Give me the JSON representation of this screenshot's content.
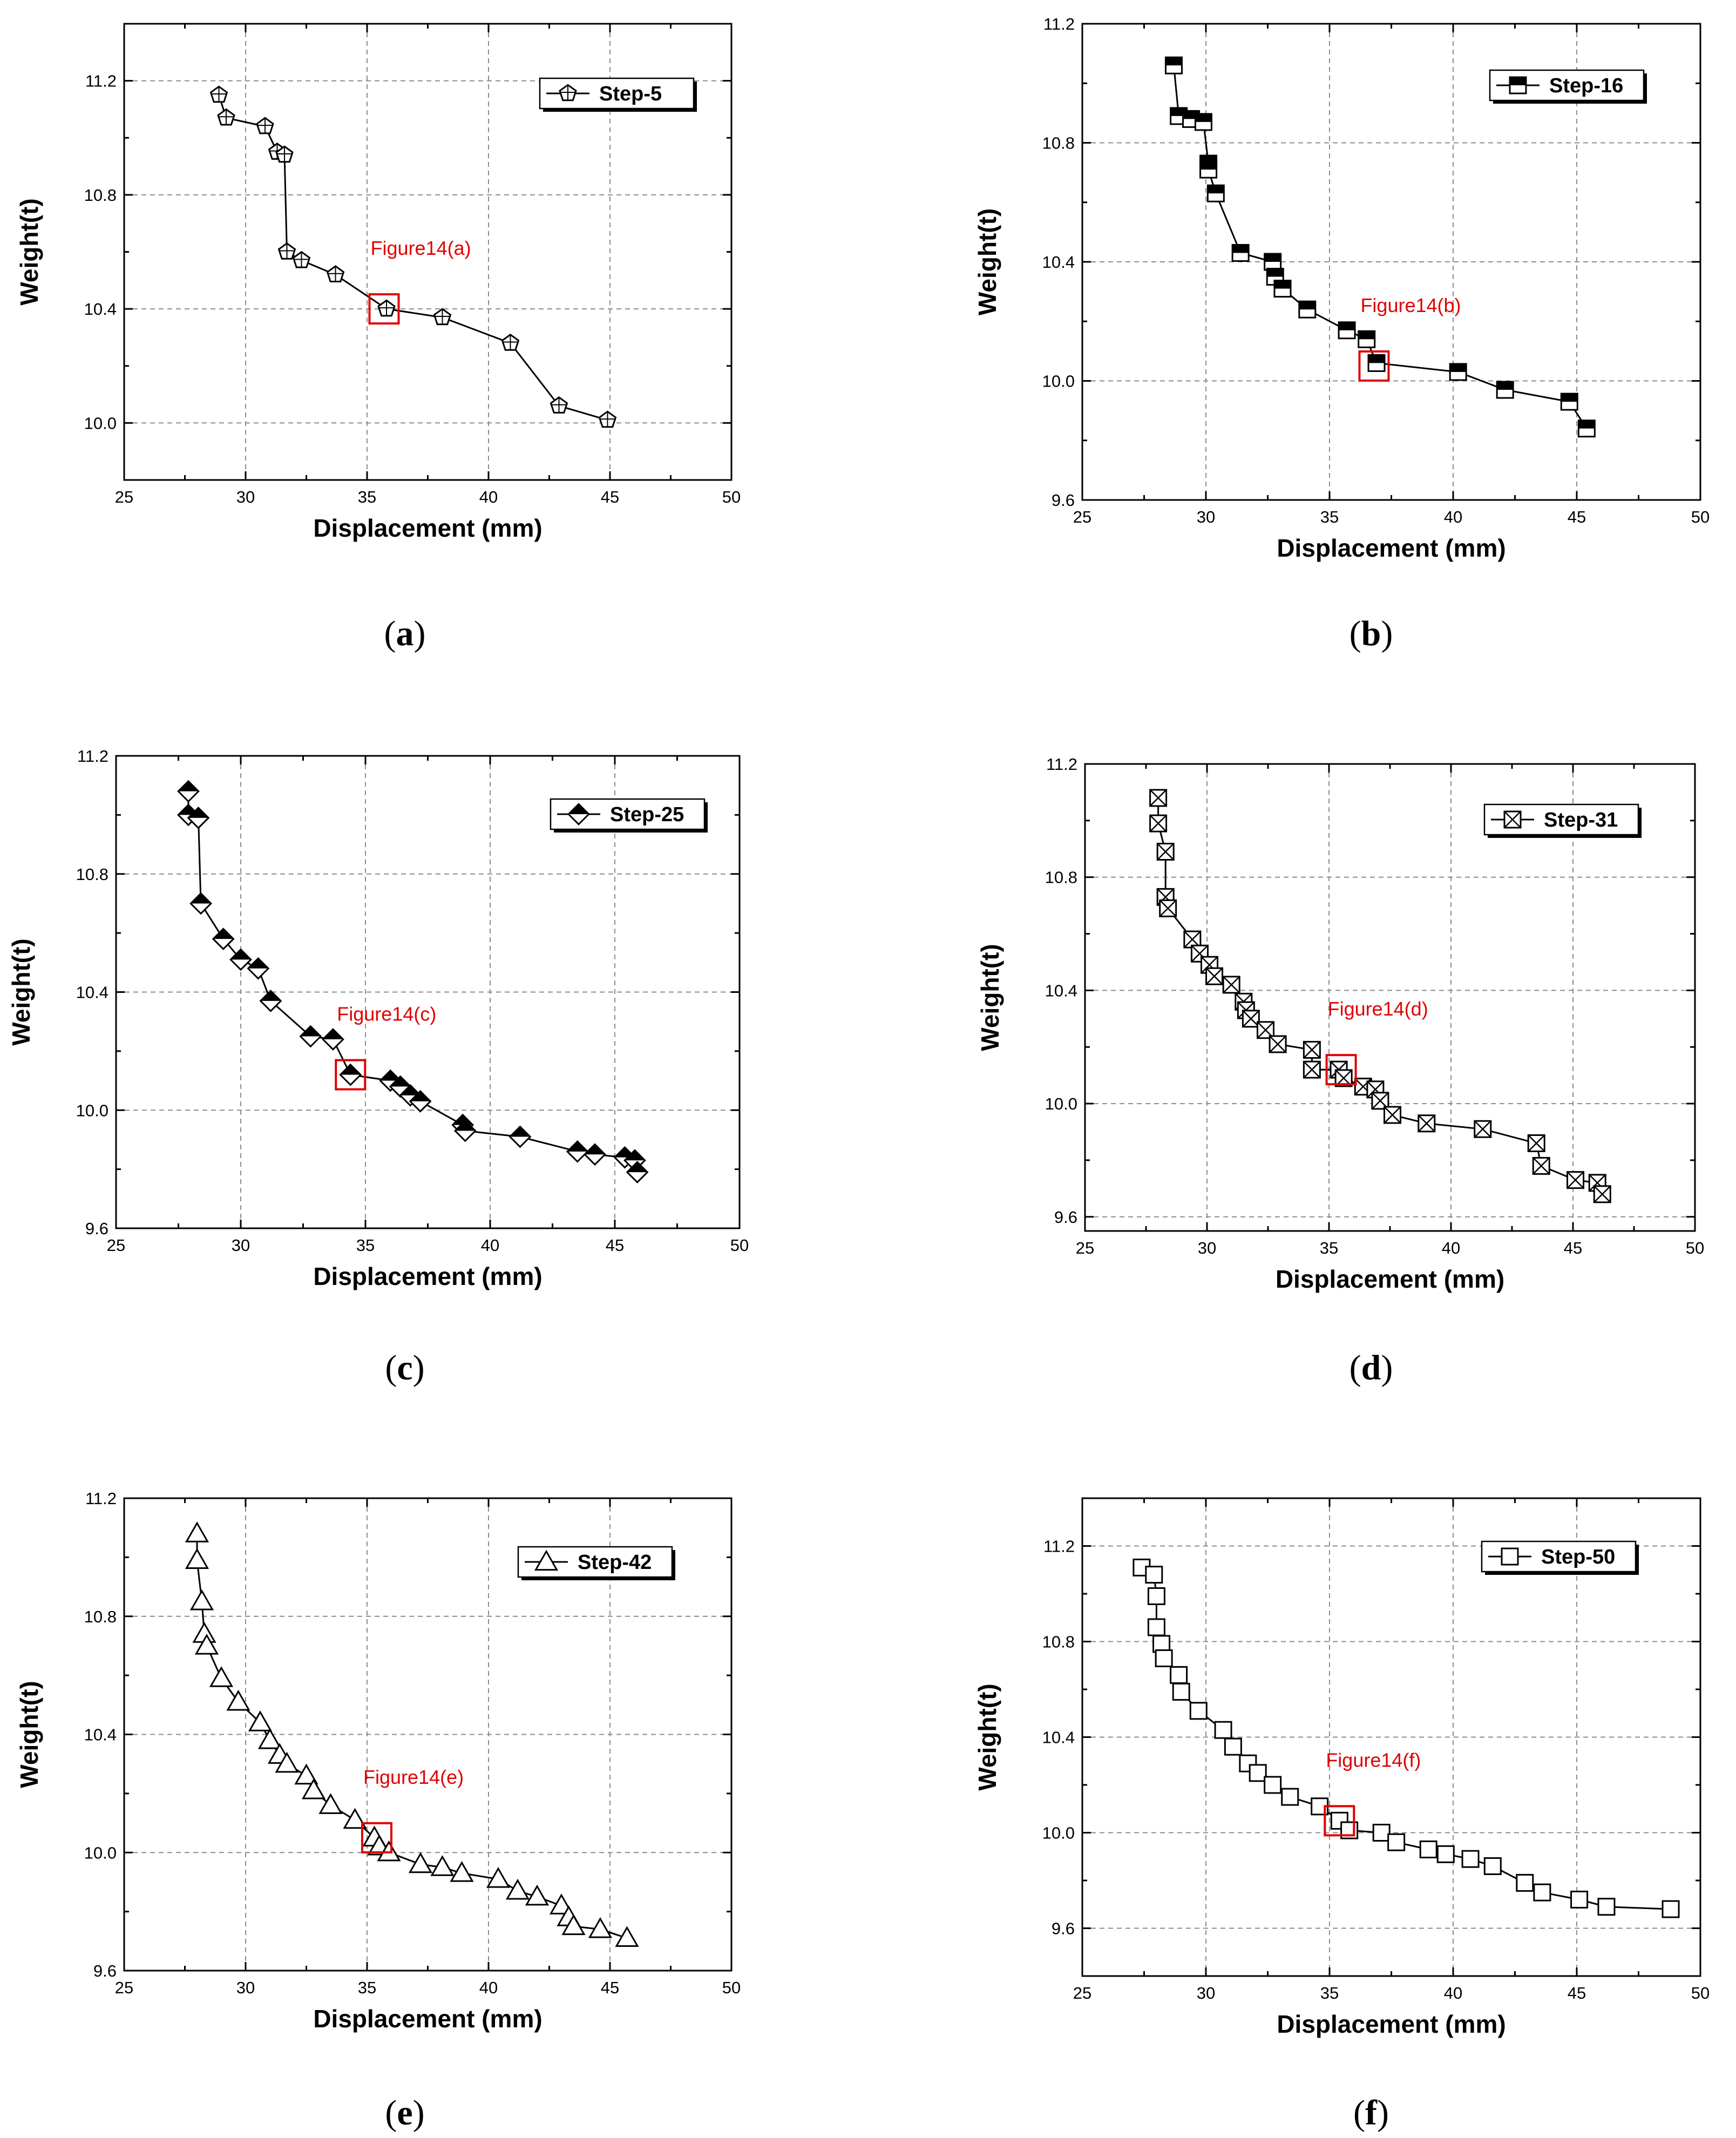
{
  "chart_data": [
    {
      "type": "line",
      "sub_label": "a",
      "series_name": "Step-5",
      "marker": "pentagon",
      "annotation": {
        "text": "Figure14(a)",
        "x": 35.7,
        "y": 10.4
      },
      "xlabel": "Displacement (mm)",
      "ylabel": "Weight(t)",
      "xlim": [
        25,
        50
      ],
      "ylim": [
        9.8,
        11.4
      ],
      "xticks": [
        25,
        30,
        35,
        40,
        45,
        50
      ],
      "yticks": [
        10.0,
        10.4,
        10.8,
        11.2
      ],
      "grid": true,
      "points": [
        [
          28.9,
          11.15
        ],
        [
          29.2,
          11.07
        ],
        [
          30.8,
          11.04
        ],
        [
          31.3,
          10.95
        ],
        [
          31.6,
          10.94
        ],
        [
          31.7,
          10.6
        ],
        [
          32.3,
          10.57
        ],
        [
          33.7,
          10.52
        ],
        [
          35.8,
          10.4
        ],
        [
          38.1,
          10.37
        ],
        [
          40.9,
          10.28
        ],
        [
          42.9,
          10.06
        ],
        [
          44.9,
          10.01
        ]
      ]
    },
    {
      "type": "line",
      "sub_label": "b",
      "series_name": "Step-16",
      "marker": "square-half",
      "annotation": {
        "text": "Figure14(b)",
        "x": 36.8,
        "y": 10.05
      },
      "xlabel": "Displacement (mm)",
      "ylabel": "Weight(t)",
      "xlim": [
        25,
        50
      ],
      "ylim": [
        9.6,
        11.2
      ],
      "xticks": [
        25,
        30,
        35,
        40,
        45,
        50
      ],
      "yticks": [
        9.6,
        10.0,
        10.4,
        10.8,
        11.2
      ],
      "grid": true,
      "points": [
        [
          28.7,
          11.06
        ],
        [
          28.9,
          10.89
        ],
        [
          29.4,
          10.88
        ],
        [
          29.9,
          10.87
        ],
        [
          30.1,
          10.73
        ],
        [
          30.1,
          10.71
        ],
        [
          30.4,
          10.63
        ],
        [
          31.4,
          10.43
        ],
        [
          32.7,
          10.4
        ],
        [
          32.8,
          10.35
        ],
        [
          33.1,
          10.31
        ],
        [
          34.1,
          10.24
        ],
        [
          35.7,
          10.17
        ],
        [
          36.5,
          10.14
        ],
        [
          36.9,
          10.06
        ],
        [
          40.2,
          10.03
        ],
        [
          42.1,
          9.97
        ],
        [
          44.7,
          9.93
        ],
        [
          45.4,
          9.84
        ]
      ]
    },
    {
      "type": "line",
      "sub_label": "c",
      "series_name": "Step-25",
      "marker": "diamond-half",
      "annotation": {
        "text": "Figure14(c)",
        "x": 34.4,
        "y": 10.12
      },
      "xlabel": "Displacement (mm)",
      "ylabel": "Weight(t)",
      "xlim": [
        25,
        50
      ],
      "ylim": [
        9.6,
        11.2
      ],
      "xticks": [
        25,
        30,
        35,
        40,
        45,
        50
      ],
      "yticks": [
        9.6,
        10.0,
        10.4,
        10.8,
        11.2
      ],
      "grid": true,
      "points": [
        [
          27.9,
          11.08
        ],
        [
          27.9,
          11.0
        ],
        [
          28.3,
          10.99
        ],
        [
          28.4,
          10.7
        ],
        [
          29.3,
          10.58
        ],
        [
          30.0,
          10.51
        ],
        [
          30.7,
          10.48
        ],
        [
          31.2,
          10.37
        ],
        [
          32.8,
          10.25
        ],
        [
          33.7,
          10.24
        ],
        [
          34.4,
          10.12
        ],
        [
          36.0,
          10.1
        ],
        [
          36.4,
          10.08
        ],
        [
          36.8,
          10.05
        ],
        [
          37.2,
          10.03
        ],
        [
          38.9,
          9.95
        ],
        [
          39.0,
          9.93
        ],
        [
          41.2,
          9.91
        ],
        [
          43.5,
          9.86
        ],
        [
          44.2,
          9.85
        ],
        [
          45.4,
          9.84
        ],
        [
          45.8,
          9.83
        ],
        [
          45.9,
          9.79
        ]
      ]
    },
    {
      "type": "line",
      "sub_label": "d",
      "series_name": "Step-31",
      "marker": "square-cross",
      "annotation": {
        "text": "Figure14(d)",
        "x": 35.5,
        "y": 10.12
      },
      "xlabel": "Displacement (mm)",
      "ylabel": "Weight(t)",
      "xlim": [
        25,
        50
      ],
      "ylim": [
        9.55,
        11.2
      ],
      "xticks": [
        25,
        30,
        35,
        40,
        45,
        50
      ],
      "yticks": [
        9.6,
        10.0,
        10.4,
        10.8,
        11.2
      ],
      "grid": true,
      "points": [
        [
          28.0,
          11.08
        ],
        [
          28.0,
          10.99
        ],
        [
          28.3,
          10.89
        ],
        [
          28.3,
          10.73
        ],
        [
          28.4,
          10.69
        ],
        [
          29.4,
          10.58
        ],
        [
          29.7,
          10.53
        ],
        [
          30.1,
          10.49
        ],
        [
          30.3,
          10.45
        ],
        [
          31.0,
          10.42
        ],
        [
          31.5,
          10.36
        ],
        [
          31.6,
          10.33
        ],
        [
          31.8,
          10.3
        ],
        [
          32.4,
          10.26
        ],
        [
          32.9,
          10.21
        ],
        [
          34.3,
          10.19
        ],
        [
          34.3,
          10.12
        ],
        [
          35.4,
          10.12
        ],
        [
          35.6,
          10.09
        ],
        [
          36.4,
          10.06
        ],
        [
          36.9,
          10.05
        ],
        [
          37.1,
          10.01
        ],
        [
          37.6,
          9.96
        ],
        [
          39.0,
          9.93
        ],
        [
          41.3,
          9.91
        ],
        [
          43.5,
          9.86
        ],
        [
          43.7,
          9.78
        ],
        [
          45.1,
          9.73
        ],
        [
          46.0,
          9.72
        ],
        [
          46.2,
          9.68
        ]
      ]
    },
    {
      "type": "line",
      "sub_label": "e",
      "series_name": "Step-42",
      "marker": "triangle",
      "annotation": {
        "text": "Figure14(e)",
        "x": 35.4,
        "y": 10.05
      },
      "xlabel": "Displacement (mm)",
      "ylabel": "Weight(t)",
      "xlim": [
        25,
        50
      ],
      "ylim": [
        9.6,
        11.2
      ],
      "xticks": [
        25,
        30,
        35,
        40,
        45,
        50
      ],
      "yticks": [
        9.6,
        10.0,
        10.4,
        10.8,
        11.2
      ],
      "grid": true,
      "points": [
        [
          28.0,
          11.08
        ],
        [
          28.0,
          10.99
        ],
        [
          28.2,
          10.85
        ],
        [
          28.3,
          10.74
        ],
        [
          28.4,
          10.7
        ],
        [
          29.0,
          10.59
        ],
        [
          29.7,
          10.51
        ],
        [
          30.6,
          10.44
        ],
        [
          31.0,
          10.38
        ],
        [
          31.4,
          10.33
        ],
        [
          31.7,
          10.3
        ],
        [
          32.5,
          10.26
        ],
        [
          32.8,
          10.21
        ],
        [
          33.5,
          10.16
        ],
        [
          34.5,
          10.11
        ],
        [
          35.3,
          10.05
        ],
        [
          35.5,
          10.02
        ],
        [
          35.9,
          10.0
        ],
        [
          37.2,
          9.96
        ],
        [
          38.1,
          9.95
        ],
        [
          38.9,
          9.93
        ],
        [
          40.4,
          9.91
        ],
        [
          41.2,
          9.87
        ],
        [
          42.0,
          9.85
        ],
        [
          43.0,
          9.82
        ],
        [
          43.3,
          9.78
        ],
        [
          43.5,
          9.75
        ],
        [
          44.6,
          9.74
        ],
        [
          45.7,
          9.71
        ]
      ]
    },
    {
      "type": "line",
      "sub_label": "f",
      "series_name": "Step-50",
      "marker": "square",
      "annotation": {
        "text": "Figure14(f)",
        "x": 35.4,
        "y": 10.05
      },
      "xlabel": "Displacement (mm)",
      "ylabel": "Weight(t)",
      "xlim": [
        25,
        50
      ],
      "ylim": [
        9.4,
        11.4
      ],
      "xticks": [
        25,
        30,
        35,
        40,
        45,
        50
      ],
      "yticks": [
        9.6,
        10.0,
        10.4,
        10.8,
        11.2
      ],
      "grid": true,
      "points": [
        [
          27.4,
          11.11
        ],
        [
          27.9,
          11.08
        ],
        [
          28.0,
          10.99
        ],
        [
          28.0,
          10.86
        ],
        [
          28.2,
          10.79
        ],
        [
          28.3,
          10.73
        ],
        [
          28.9,
          10.66
        ],
        [
          29.0,
          10.59
        ],
        [
          29.7,
          10.51
        ],
        [
          30.7,
          10.43
        ],
        [
          31.1,
          10.36
        ],
        [
          31.7,
          10.29
        ],
        [
          32.1,
          10.25
        ],
        [
          32.7,
          10.2
        ],
        [
          33.4,
          10.15
        ],
        [
          34.6,
          10.11
        ],
        [
          35.4,
          10.05
        ],
        [
          35.8,
          10.01
        ],
        [
          37.1,
          10.0
        ],
        [
          37.7,
          9.96
        ],
        [
          39.0,
          9.93
        ],
        [
          39.7,
          9.91
        ],
        [
          40.7,
          9.89
        ],
        [
          41.6,
          9.86
        ],
        [
          42.9,
          9.79
        ],
        [
          43.6,
          9.75
        ],
        [
          45.1,
          9.72
        ],
        [
          46.2,
          9.69
        ],
        [
          48.8,
          9.68
        ]
      ]
    }
  ]
}
